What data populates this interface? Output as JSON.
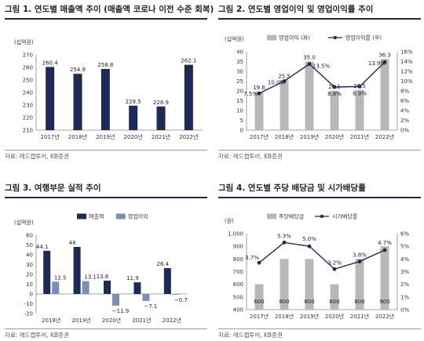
{
  "source": "자료: 레드캡투어, KB증권",
  "chart_data": [
    {
      "type": "bar",
      "title": "그림 1. 연도별 매출액 추이 (매출액 코로나 이전 수준 회복)",
      "unit": "(십억원)",
      "categories": [
        "2017년",
        "2018년",
        "2019년",
        "2020년",
        "2021년",
        "2022년"
      ],
      "series": [
        {
          "values": [
            260.4,
            254.9,
            258.8,
            229.5,
            228.9,
            262.1
          ],
          "color": "#1c2a55"
        }
      ],
      "ylim": [
        210,
        270
      ],
      "yticks": [
        210,
        220,
        230,
        240,
        250,
        260,
        270
      ]
    },
    {
      "type": "bar",
      "title": "그림 2. 연도별 영업이익 및 영업이익률 추이",
      "unit": "(십억원)",
      "categories": [
        "2017년",
        "2018년",
        "2019년",
        "2020년",
        "2021년",
        "2022년"
      ],
      "series": [
        {
          "name": "영업이익 (좌)",
          "kind": "bar",
          "axis": "left",
          "values": [
            19.6,
            25.5,
            35.0,
            20.1,
            20.5,
            36.3
          ],
          "labels": [
            "19.6",
            "25.5",
            "35.0",
            "20.1",
            "20.5",
            "36.3"
          ],
          "color": "#b8b8b8"
        },
        {
          "name": "영업이익률 (우)",
          "kind": "line",
          "axis": "right",
          "values": [
            7.5,
            10.0,
            13.5,
            8.8,
            8.9,
            13.9
          ],
          "labels": [
            "7.5%",
            "10.0%",
            "13.5%",
            "8.8%",
            "8.9%",
            "13.9%"
          ],
          "color": "#1c2a55"
        }
      ],
      "ylim": [
        0,
        40
      ],
      "yticks": [
        0,
        5,
        10,
        15,
        20,
        25,
        30,
        35,
        40
      ],
      "ylim_right": [
        0,
        16
      ],
      "yticks_right": [
        "0%",
        "2%",
        "4%",
        "6%",
        "8%",
        "10%",
        "12%",
        "14%",
        "16%"
      ],
      "legend": "top"
    },
    {
      "type": "bar",
      "title": "그림 3. 여행부문 실적 추이",
      "unit": "(십억원)",
      "categories": [
        "2018년",
        "2019년",
        "2020년",
        "2021년",
        "2022년"
      ],
      "series": [
        {
          "name": "매출액",
          "values": [
            44.1,
            48,
            13.6,
            11.9,
            26.4
          ],
          "labels": [
            "44.1",
            "48",
            "13.6",
            "11.9",
            "26.4"
          ],
          "color": "#1c2a55"
        },
        {
          "name": "영업이익",
          "values": [
            12.5,
            13.1,
            -11.9,
            -7.1,
            -0.7
          ],
          "labels": [
            "12.5",
            "13.1",
            "−11.9",
            "−7.1",
            "−0.7"
          ],
          "color": "#7b8eb5"
        }
      ],
      "ylim": [
        -20,
        60
      ],
      "yticks": [
        -20,
        -10,
        0,
        10,
        20,
        30,
        40,
        50,
        60
      ],
      "legend": "top-left"
    },
    {
      "type": "bar",
      "title": "그림 4. 연도별 주당 배당금 및 시가배당률",
      "unit": "(원)",
      "categories": [
        "2017년",
        "2018년",
        "2019년",
        "2020년",
        "2021년",
        "2022년"
      ],
      "series": [
        {
          "name": "주당배당금",
          "kind": "bar",
          "axis": "left",
          "values": [
            600,
            800,
            800,
            600,
            800,
            900
          ],
          "labels": [
            "600",
            "800",
            "800",
            "600",
            "800",
            "900"
          ],
          "color": "#b8b8b8"
        },
        {
          "name": "시가배당률",
          "kind": "line",
          "axis": "right",
          "values": [
            3.7,
            5.3,
            5.0,
            3.2,
            3.8,
            4.7
          ],
          "labels": [
            "3.7%",
            "5.3%",
            "5.0%",
            "3.2%",
            "3.8%",
            "4.7%"
          ],
          "color": "#1c2a55"
        }
      ],
      "ylim": [
        400,
        1000
      ],
      "yticks": [
        400,
        500,
        600,
        700,
        800,
        900,
        "1,000"
      ],
      "ylim_right": [
        0,
        6
      ],
      "yticks_right": [
        "0%",
        "1%",
        "2%",
        "3%",
        "4%",
        "5%",
        "6%"
      ],
      "legend": "top"
    }
  ]
}
